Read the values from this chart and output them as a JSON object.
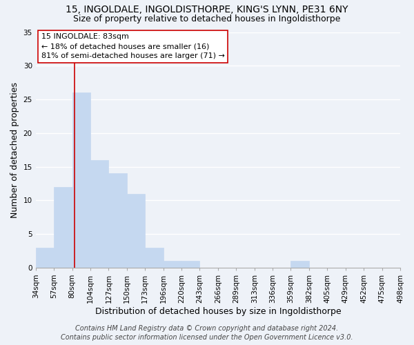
{
  "title": "15, INGOLDALE, INGOLDISTHORPE, KING'S LYNN, PE31 6NY",
  "subtitle": "Size of property relative to detached houses in Ingoldisthorpe",
  "xlabel": "Distribution of detached houses by size in Ingoldisthorpe",
  "ylabel": "Number of detached properties",
  "bin_edges": [
    34,
    57,
    80,
    103,
    126,
    149,
    172,
    195,
    218,
    241,
    264,
    287,
    310,
    333,
    356,
    379,
    402,
    425,
    448,
    471,
    494
  ],
  "bin_labels": [
    "34sqm",
    "57sqm",
    "80sqm",
    "104sqm",
    "127sqm",
    "150sqm",
    "173sqm",
    "196sqm",
    "220sqm",
    "243sqm",
    "266sqm",
    "289sqm",
    "313sqm",
    "336sqm",
    "359sqm",
    "382sqm",
    "405sqm",
    "429sqm",
    "452sqm",
    "475sqm",
    "498sqm"
  ],
  "counts": [
    3,
    12,
    26,
    16,
    14,
    11,
    3,
    1,
    1,
    0,
    0,
    0,
    0,
    0,
    1,
    0,
    0,
    0,
    0,
    0
  ],
  "bar_color": "#c5d8f0",
  "bar_edge_color": "#c5d8f0",
  "vline_x": 83,
  "vline_color": "#cc0000",
  "ylim": [
    0,
    35
  ],
  "annotation_text": "15 INGOLDALE: 83sqm\n← 18% of detached houses are smaller (16)\n81% of semi-detached houses are larger (71) →",
  "annotation_box_color": "#ffffff",
  "annotation_box_edge_color": "#cc0000",
  "footnote1": "Contains HM Land Registry data © Crown copyright and database right 2024.",
  "footnote2": "Contains public sector information licensed under the Open Government Licence v3.0.",
  "background_color": "#eef2f8",
  "title_fontsize": 10,
  "subtitle_fontsize": 9,
  "label_fontsize": 9,
  "tick_fontsize": 7.5,
  "annotation_fontsize": 8,
  "footnote_fontsize": 7
}
